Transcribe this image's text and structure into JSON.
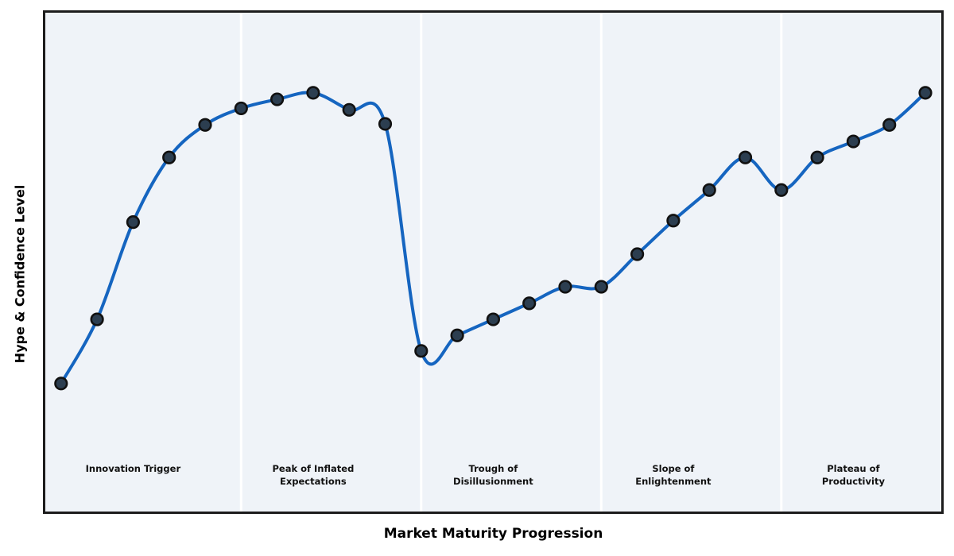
{
  "chart_data": {
    "type": "line",
    "title": "",
    "xlabel": "Market Maturity Progression",
    "ylabel": "Hype & Confidence Level",
    "x": [
      0,
      1,
      2,
      3,
      4,
      5,
      6,
      7,
      8,
      9,
      10,
      11,
      12,
      13,
      14,
      15,
      16,
      17,
      18,
      19,
      20,
      21,
      22,
      23,
      24
    ],
    "series": [
      {
        "name": "Hype & Confidence Level",
        "values": [
          25.7,
          38.5,
          57.9,
          70.8,
          77.3,
          80.6,
          82.4,
          83.7,
          80.3,
          77.5,
          32.2,
          35.3,
          38.5,
          41.7,
          45.0,
          45.0,
          51.5,
          58.2,
          64.3,
          70.8,
          64.3,
          70.8,
          74.0,
          77.3,
          83.7
        ]
      }
    ],
    "ylim": [
      0,
      100
    ],
    "xlim": [
      -0.48,
      24.55
    ],
    "grid": false,
    "axis_ticks": "none",
    "legend": "none",
    "smooth_spline": true,
    "divider_positions": [
      5,
      10,
      15,
      20
    ],
    "phases": [
      {
        "label": "Innovation Trigger",
        "label_x": 2
      },
      {
        "label": "Peak of Inflated\nExpectations",
        "label_x": 7
      },
      {
        "label": "Trough of\nDisillusionment",
        "label_x": 12
      },
      {
        "label": "Slope of\nEnlightenment",
        "label_x": 17
      },
      {
        "label": "Plateau of\nProductivity",
        "label_x": 22
      }
    ],
    "colors": {
      "line": "#1565c0",
      "marker_fill": "#2c3e50",
      "marker_edge": "#111111",
      "plot_background": "#eff3f8",
      "divider": "#ffffff",
      "border": "#1c1c1c",
      "text": "#111111"
    }
  }
}
